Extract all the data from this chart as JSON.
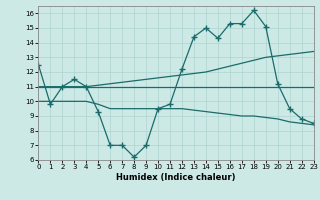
{
  "xlabel": "Humidex (Indice chaleur)",
  "bg_color": "#cce9e6",
  "line_color": "#1a6b6b",
  "grid_color": "#aed4d0",
  "xlim": [
    0,
    23
  ],
  "ylim": [
    6,
    16.5
  ],
  "yticks": [
    6,
    7,
    8,
    9,
    10,
    11,
    12,
    13,
    14,
    15,
    16
  ],
  "xticks": [
    0,
    1,
    2,
    3,
    4,
    5,
    6,
    7,
    8,
    9,
    10,
    11,
    12,
    13,
    14,
    15,
    16,
    17,
    18,
    19,
    20,
    21,
    22,
    23
  ],
  "line_main_x": [
    0,
    1,
    2,
    3,
    4,
    5,
    6,
    7,
    8,
    9,
    10,
    11,
    12,
    13,
    14,
    15,
    16,
    17,
    18,
    19,
    20,
    21,
    22,
    23
  ],
  "line_main_y": [
    12.5,
    9.8,
    11.0,
    11.5,
    11.0,
    9.3,
    7.0,
    7.0,
    6.2,
    7.0,
    9.5,
    9.8,
    12.2,
    14.4,
    15.0,
    14.3,
    15.3,
    15.3,
    16.2,
    15.1,
    11.2,
    9.5,
    8.8,
    8.5
  ],
  "line_flat_x": [
    0,
    1,
    2,
    3,
    4,
    19,
    20,
    21,
    22,
    23
  ],
  "line_flat_y": [
    11.0,
    11.0,
    11.0,
    11.0,
    11.0,
    11.0,
    11.0,
    11.0,
    11.0,
    11.0
  ],
  "line_decline_x": [
    0,
    1,
    2,
    3,
    4,
    5,
    6,
    7,
    8,
    9,
    10,
    11,
    12,
    13,
    14,
    15,
    16,
    17,
    18,
    19,
    20,
    21,
    22,
    23
  ],
  "line_decline_y": [
    10.0,
    10.0,
    10.0,
    10.0,
    10.0,
    9.8,
    9.5,
    9.5,
    9.5,
    9.5,
    9.5,
    9.5,
    9.5,
    9.4,
    9.3,
    9.2,
    9.1,
    9.0,
    9.0,
    8.9,
    8.8,
    8.6,
    8.5,
    8.4
  ],
  "line_rise_x": [
    0,
    1,
    2,
    3,
    4,
    5,
    6,
    7,
    8,
    9,
    10,
    11,
    12,
    13,
    14,
    15,
    16,
    17,
    18,
    19,
    20,
    21,
    22,
    23
  ],
  "line_rise_y": [
    11.0,
    11.0,
    11.0,
    11.0,
    11.0,
    11.1,
    11.2,
    11.3,
    11.4,
    11.5,
    11.6,
    11.7,
    11.8,
    11.9,
    12.0,
    12.2,
    12.4,
    12.6,
    12.8,
    13.0,
    13.1,
    13.2,
    13.3,
    13.4
  ]
}
